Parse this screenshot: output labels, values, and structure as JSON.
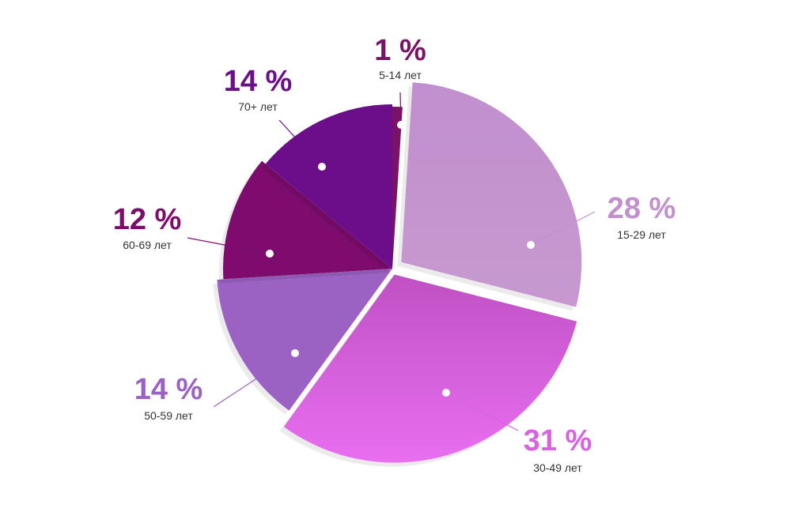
{
  "chart_data": {
    "type": "pie",
    "title": "",
    "unit": "%",
    "slices": [
      {
        "label": "5-14 лет",
        "value": 1,
        "value_label": "1 %",
        "color": "#7a1268"
      },
      {
        "label": "15-29 лет",
        "value": 28,
        "value_label": "28 %",
        "color": "#c190cd"
      },
      {
        "label": "30-49 лет",
        "value": 31,
        "value_label": "31 %",
        "color": "#d763df"
      },
      {
        "label": "50-59 лет",
        "value": 14,
        "value_label": "14 %",
        "color": "#9b61c3"
      },
      {
        "label": "60-69 лет",
        "value": 12,
        "value_label": "12 %",
        "color": "#7d0c6e"
      },
      {
        "label": "70+ лет",
        "value": 14,
        "value_label": "14 %",
        "color": "#6c0d8a"
      }
    ]
  }
}
